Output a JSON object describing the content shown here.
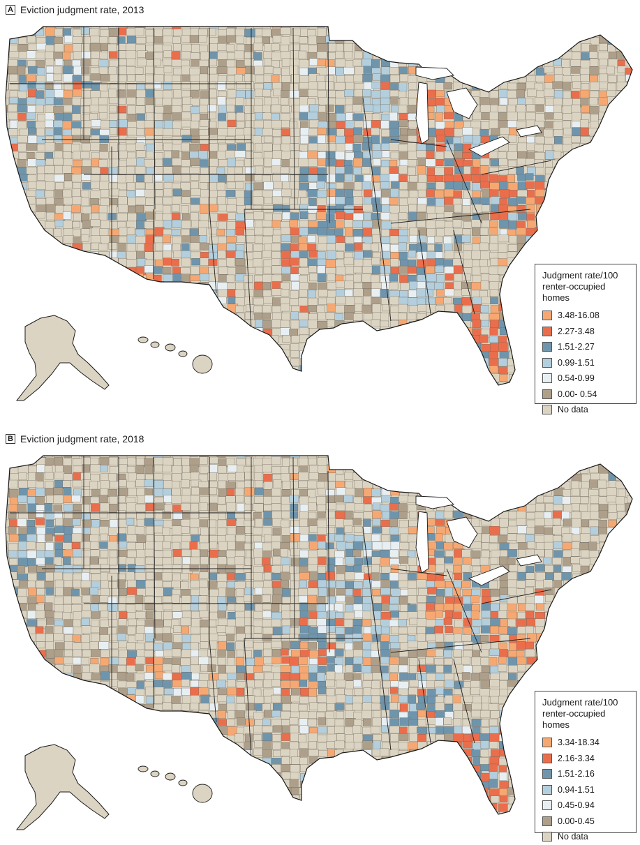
{
  "panels": [
    {
      "letter": "A",
      "title": "Eviction judgment rate, 2013",
      "legend": {
        "title_line1": "Judgment rate/100",
        "title_line2": "renter-occupied homes",
        "items": [
          {
            "label": "3.48-16.08",
            "color": "#f6a873"
          },
          {
            "label": "2.27-3.48",
            "color": "#ea6e4c"
          },
          {
            "label": "1.51-2.27",
            "color": "#6f95ad"
          },
          {
            "label": "0.99-1.51",
            "color": "#b3cedc"
          },
          {
            "label": "0.54-0.99",
            "color": "#e8eff3"
          },
          {
            "label": "0.00- 0.54",
            "color": "#ad9f8a"
          },
          {
            "label": "No data",
            "color": "#dcd4c2"
          }
        ]
      }
    },
    {
      "letter": "B",
      "title": "Eviction judgment rate, 2018",
      "legend": {
        "title_line1": "Judgment rate/100",
        "title_line2": "renter-occupied homes",
        "items": [
          {
            "label": "3.34-18.34",
            "color": "#f6a873"
          },
          {
            "label": "2.16-3.34",
            "color": "#ea6e4c"
          },
          {
            "label": "1.51-2.16",
            "color": "#6f95ad"
          },
          {
            "label": "0.94-1.51",
            "color": "#b3cedc"
          },
          {
            "label": "0.45-0.94",
            "color": "#e8eff3"
          },
          {
            "label": "0.00-0.45",
            "color": "#ad9f8a"
          },
          {
            "label": "No data",
            "color": "#dcd4c2"
          }
        ]
      }
    }
  ]
}
